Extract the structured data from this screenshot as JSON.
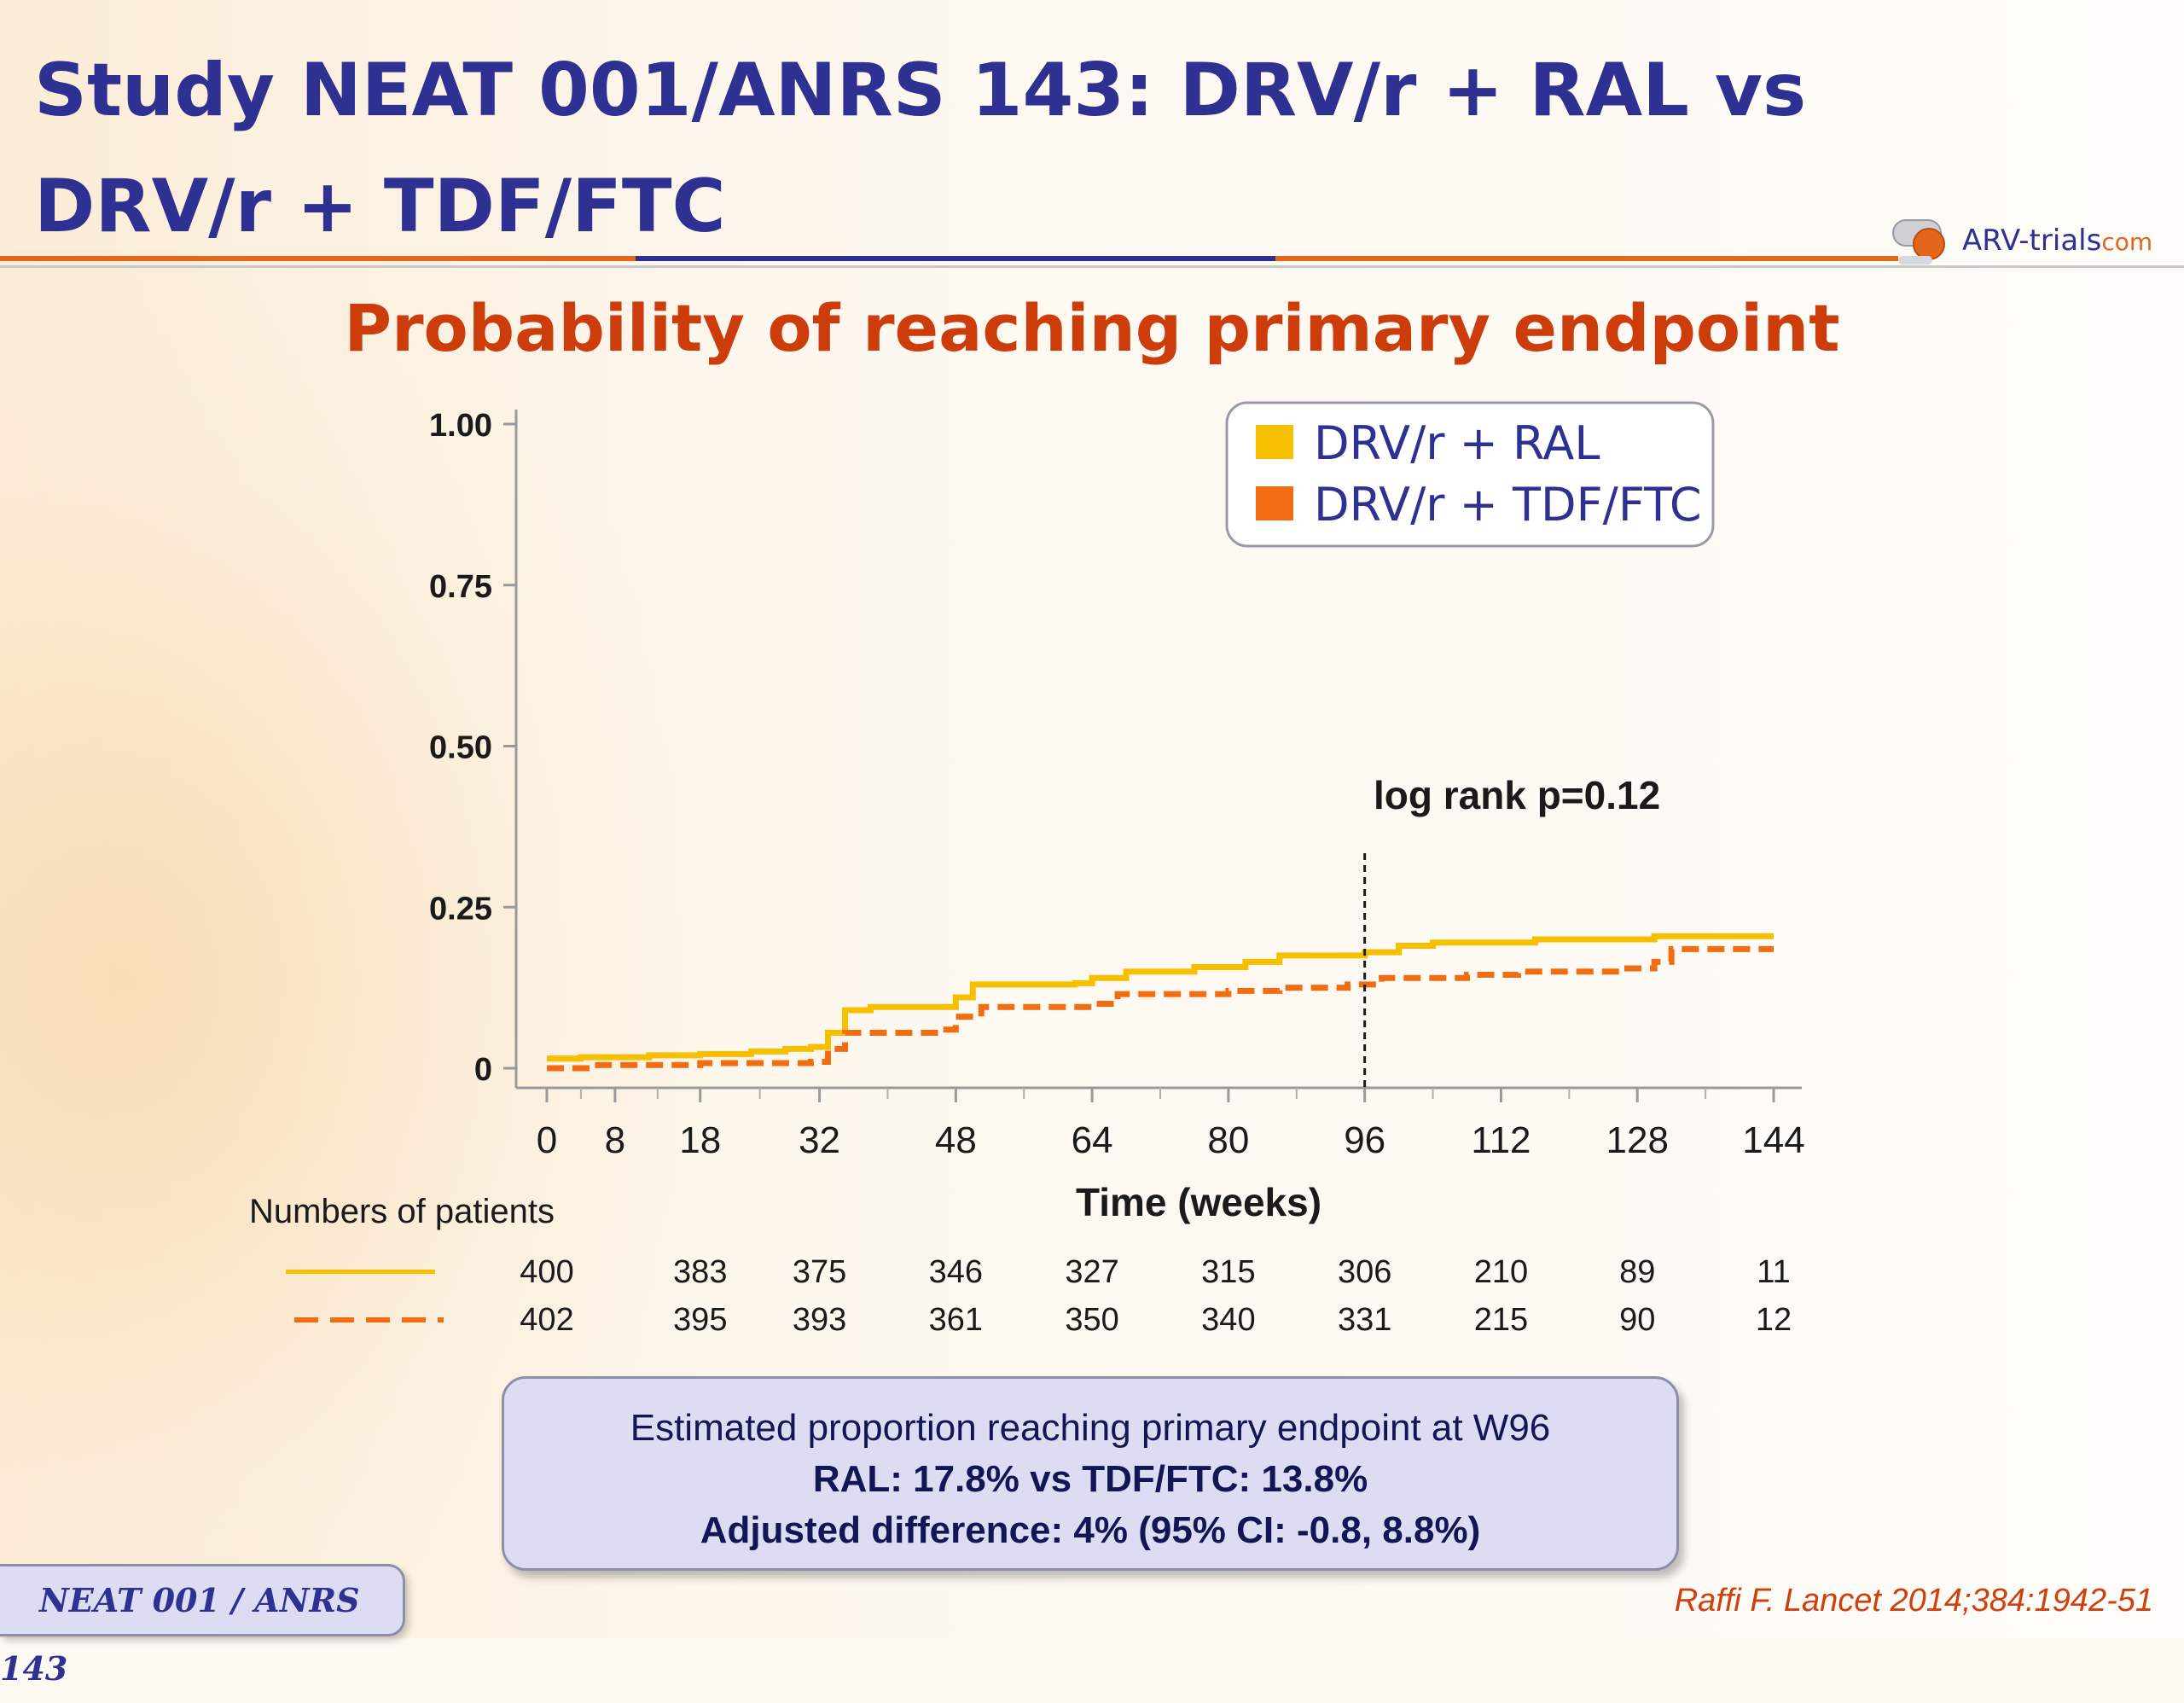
{
  "slide": {
    "title": "Study NEAT 001/ANRS 143: DRV/r + RAL vs DRV/r + TDF/FTC",
    "subtitle": "Probability of reaching primary endpoint",
    "logo_text": "ARV-trials",
    "logo_domain": "com",
    "footer_label": "NEAT 001 / ANRS 143",
    "citation": "Raffi F. Lancet 2014;384:1942-51",
    "colors": {
      "title": "#2e3192",
      "subtitle": "#cc3d0b",
      "ral": "#f6c000",
      "tdf": "#f26c12"
    }
  },
  "chart_data": {
    "type": "line",
    "title": "Probability of reaching primary endpoint",
    "xlabel": "Time (weeks)",
    "ylabel": "",
    "xlim": [
      0,
      144
    ],
    "ylim": [
      0,
      1.0
    ],
    "x_ticks": [
      0,
      8,
      18,
      32,
      48,
      64,
      80,
      96,
      112,
      128,
      144
    ],
    "y_ticks": [
      {
        "value": 0,
        "label": "0"
      },
      {
        "value": 0.25,
        "label": "0.25"
      },
      {
        "value": 0.5,
        "label": "0.50"
      },
      {
        "value": 0.75,
        "label": "0.75"
      },
      {
        "value": 1.0,
        "label": "1.00"
      }
    ],
    "legend_position": "top-right",
    "series": [
      {
        "name": "DRV/r + RAL",
        "color": "#f6c000",
        "style": "solid",
        "points": [
          [
            0,
            0.015
          ],
          [
            4,
            0.017
          ],
          [
            12,
            0.02
          ],
          [
            18,
            0.022
          ],
          [
            24,
            0.026
          ],
          [
            28,
            0.03
          ],
          [
            31,
            0.033
          ],
          [
            33,
            0.055
          ],
          [
            35,
            0.09
          ],
          [
            38,
            0.095
          ],
          [
            46,
            0.095
          ],
          [
            48,
            0.11
          ],
          [
            50,
            0.13
          ],
          [
            62,
            0.132
          ],
          [
            64,
            0.14
          ],
          [
            68,
            0.15
          ],
          [
            76,
            0.157
          ],
          [
            82,
            0.165
          ],
          [
            86,
            0.175
          ],
          [
            96,
            0.18
          ],
          [
            100,
            0.19
          ],
          [
            104,
            0.195
          ],
          [
            116,
            0.2
          ],
          [
            130,
            0.205
          ],
          [
            144,
            0.205
          ]
        ]
      },
      {
        "name": "DRV/r + TDF/FTC",
        "color": "#f26c12",
        "style": "dashed",
        "points": [
          [
            0,
            0.0
          ],
          [
            6,
            0.005
          ],
          [
            18,
            0.008
          ],
          [
            31,
            0.01
          ],
          [
            33,
            0.03
          ],
          [
            35,
            0.055
          ],
          [
            46,
            0.06
          ],
          [
            48,
            0.08
          ],
          [
            51,
            0.095
          ],
          [
            64,
            0.1
          ],
          [
            67,
            0.115
          ],
          [
            80,
            0.12
          ],
          [
            86,
            0.125
          ],
          [
            94,
            0.13
          ],
          [
            98,
            0.14
          ],
          [
            108,
            0.145
          ],
          [
            114,
            0.15
          ],
          [
            126,
            0.155
          ],
          [
            130,
            0.165
          ],
          [
            132,
            0.185
          ],
          [
            144,
            0.185
          ]
        ]
      }
    ],
    "annotations": [
      {
        "text": "log rank p=0.12",
        "x": 96,
        "type": "vertical-dashed-line"
      }
    ]
  },
  "patients": {
    "header": "Numbers of patients",
    "weeks": [
      0,
      18,
      32,
      48,
      64,
      80,
      96,
      112,
      128,
      144
    ],
    "ral": [
      "400",
      "383",
      "375",
      "346",
      "327",
      "315",
      "306",
      "210",
      "89",
      "11"
    ],
    "tdf": [
      "402",
      "395",
      "393",
      "361",
      "350",
      "340",
      "331",
      "215",
      "90",
      "12"
    ]
  },
  "summary": {
    "line1": "Estimated proportion reaching primary endpoint at W96",
    "line2": "RAL: 17.8% vs TDF/FTC: 13.8%",
    "line3": "Adjusted difference: 4% (95% CI: -0.8, 8.8%)"
  }
}
